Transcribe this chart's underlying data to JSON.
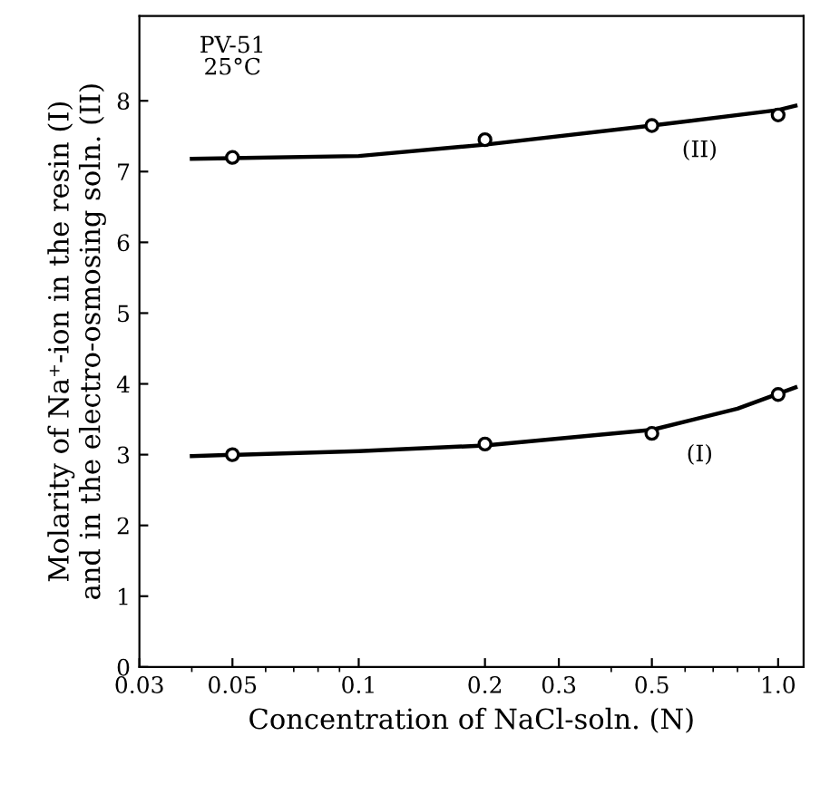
{
  "chart_data": {
    "type": "scatter",
    "xlabel": "Concentration of NaCl-soln. (N)",
    "ylabel": "Molarity of Na⁺-ion in the resin (I)\nand in the electro-osmosing soln. (II)",
    "log": "x",
    "xlim": [
      0.03,
      1.15
    ],
    "xticks": [
      {
        "value": 0.03,
        "label": "0.03"
      },
      {
        "value": 0.05,
        "label": "0.05"
      },
      0.1,
      0.2,
      0.3,
      0.5,
      {
        "value": 1.0,
        "label": "1.0"
      }
    ],
    "ylim": [
      0,
      9.2
    ],
    "yticks": [
      0,
      1,
      2,
      3,
      4,
      5,
      6,
      7,
      8
    ],
    "marker": "circle",
    "grid": false,
    "legend": false,
    "annotations": [
      "PV-51\n25°C"
    ],
    "series": [
      {
        "color": "#000000",
        "x": [
          0.05,
          0.2,
          0.5,
          1.0
        ],
        "values": [
          7.2,
          7.45,
          7.65,
          7.8
        ]
      },
      {
        "color": "#000000",
        "x": [
          0.05,
          0.2,
          0.5,
          1.0
        ],
        "values": [
          3.0,
          3.15,
          3.3,
          3.85
        ]
      },
      {
        "type": "line",
        "name": "(II)",
        "color": "#000000",
        "marker": "none",
        "x": [
          0.04,
          0.1,
          0.2,
          0.5,
          1.0,
          1.1
        ],
        "values": [
          7.18,
          7.22,
          7.38,
          7.65,
          7.87,
          7.93
        ]
      },
      {
        "type": "line",
        "name": "(I)",
        "color": "#000000",
        "marker": "none",
        "x": [
          0.04,
          0.1,
          0.2,
          0.5,
          0.8,
          1.1
        ],
        "values": [
          2.98,
          3.05,
          3.13,
          3.35,
          3.65,
          3.95
        ]
      }
    ]
  }
}
